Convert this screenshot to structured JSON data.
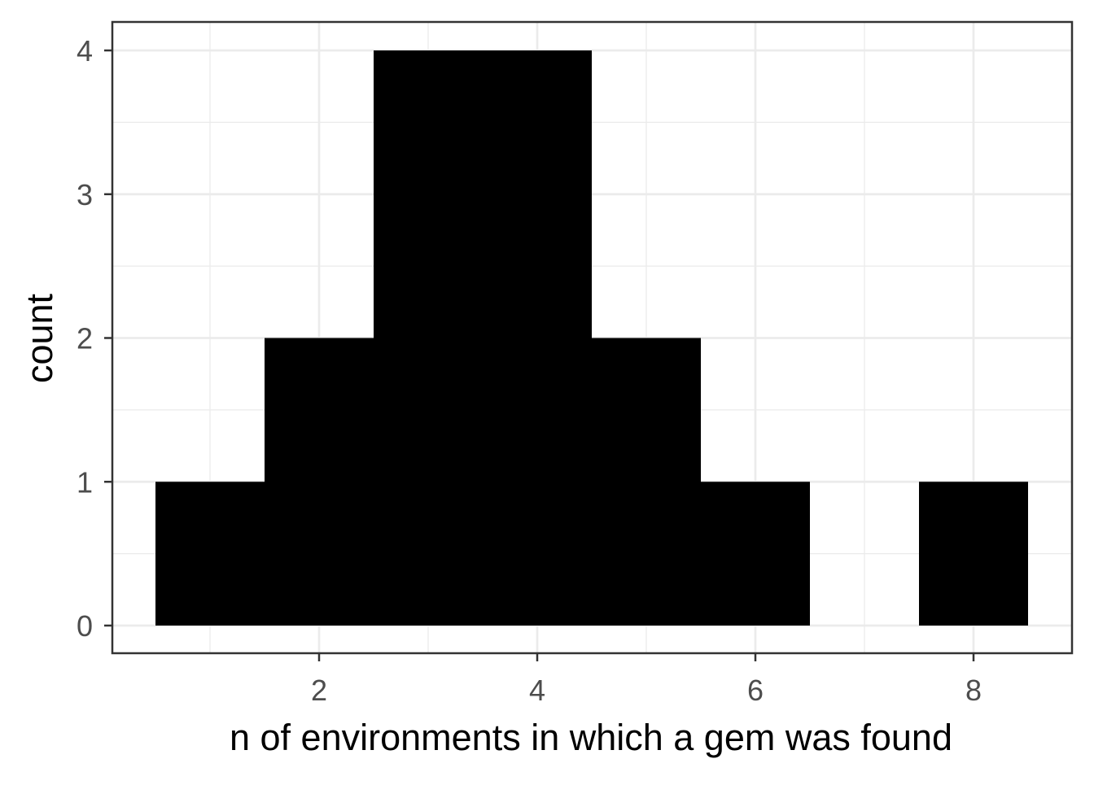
{
  "chart_data": {
    "type": "bar",
    "subtype": "histogram",
    "title": "",
    "xlabel": "n of environments in which a gem was found",
    "ylabel": "count",
    "bins": [
      {
        "x": 1,
        "count": 1
      },
      {
        "x": 2,
        "count": 2
      },
      {
        "x": 3,
        "count": 4
      },
      {
        "x": 4,
        "count": 4
      },
      {
        "x": 5,
        "count": 2
      },
      {
        "x": 6,
        "count": 1
      },
      {
        "x": 7,
        "count": 0
      },
      {
        "x": 8,
        "count": 1
      }
    ],
    "bin_width": 1,
    "xlim": [
      0.5,
      8.5
    ],
    "ylim": [
      0,
      4
    ],
    "x_ticks": [
      2,
      4,
      6,
      8
    ],
    "y_ticks": [
      0,
      1,
      2,
      3,
      4
    ],
    "grid": true,
    "bar_color": "#000000",
    "grid_color": "#ebebeb",
    "panel_border_color": "#333333"
  }
}
